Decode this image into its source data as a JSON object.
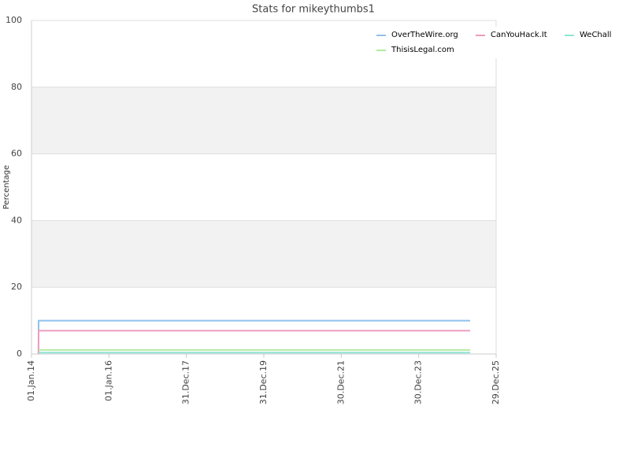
{
  "chart_data": {
    "type": "line",
    "title": "Stats for mikeythumbs1",
    "y_label": "Percentage",
    "x": [
      "2014-03-08",
      "2014-03-09",
      "2025-04-28"
    ],
    "series": [
      {
        "name": "OverTheWire.org",
        "color": "#90c0ec",
        "values": [
          0,
          10,
          10
        ]
      },
      {
        "name": "CanYouHack.It",
        "color": "#ee9cc0",
        "values": [
          0,
          7,
          7
        ]
      },
      {
        "name": "WeChall",
        "color": "#90e4d4",
        "values": [
          0.4,
          0.4,
          0.4
        ]
      },
      {
        "name": "ThisisLegal.com",
        "color": "#b0eca0",
        "values": [
          1.2,
          1.2,
          1.2
        ]
      }
    ],
    "xlim": [
      "2014-01-01",
      "2025-12-29"
    ],
    "xticks": [
      {
        "value": "2014-01-01",
        "label": "01.Jan.14"
      },
      {
        "value": "2016-01-01",
        "label": "01.Jan.16"
      },
      {
        "value": "2017-12-31",
        "label": "31.Dec.17"
      },
      {
        "value": "2019-12-31",
        "label": "31.Dec.19"
      },
      {
        "value": "2021-12-30",
        "label": "30.Dec.21"
      },
      {
        "value": "2023-12-30",
        "label": "30.Dec.23"
      },
      {
        "value": "2025-12-29",
        "label": "29.Dec.25"
      }
    ],
    "ylim": [
      0,
      100
    ],
    "yticks": [
      0,
      20,
      40,
      60,
      80,
      100
    ],
    "grid": true,
    "legend": "top-right"
  }
}
